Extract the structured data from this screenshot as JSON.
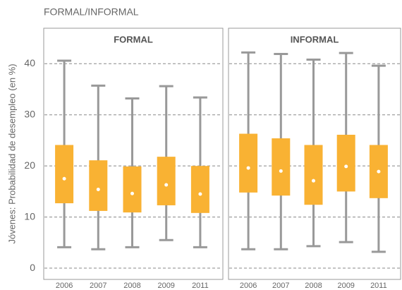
{
  "title": "FORMAL/INFORMAL",
  "chart_data": [
    {
      "type": "box",
      "title": "FORMAL",
      "ylabel": "Jóvenes: Probabilidad de desempleo (en %)",
      "categories": [
        "2006",
        "2007",
        "2008",
        "2009",
        "2011"
      ],
      "low": [
        4.1,
        3.7,
        4.1,
        5.5,
        4.1
      ],
      "q1": [
        12.7,
        11.2,
        10.9,
        12.3,
        10.8
      ],
      "median": [
        17.5,
        15.4,
        14.6,
        16.3,
        14.5
      ],
      "q3": [
        24.1,
        21.1,
        19.9,
        21.8,
        20.0
      ],
      "high": [
        40.6,
        35.7,
        33.2,
        35.6,
        33.4
      ],
      "color": "#f9b233",
      "whisker_color": "#999999",
      "ylim": [
        -2.2,
        42.8
      ],
      "yticks": [
        0,
        10,
        20,
        30,
        40
      ],
      "ytick_labels": true,
      "grid": true
    },
    {
      "type": "box",
      "title": "INFORMAL",
      "categories": [
        "2006",
        "2007",
        "2008",
        "2009",
        "2011"
      ],
      "low": [
        3.7,
        3.7,
        4.3,
        5.1,
        3.2
      ],
      "q1": [
        14.8,
        14.2,
        12.4,
        15.0,
        13.7
      ],
      "median": [
        19.6,
        19.0,
        17.1,
        19.9,
        18.9
      ],
      "q3": [
        26.3,
        25.4,
        24.1,
        26.1,
        24.1
      ],
      "high": [
        42.2,
        41.9,
        40.8,
        42.1,
        39.6
      ],
      "color": "#f9b233",
      "whisker_color": "#999999",
      "ylim": [
        -2.2,
        42.8
      ],
      "yticks": [
        0,
        10,
        20,
        30,
        40
      ],
      "ytick_labels": false,
      "grid": true
    }
  ]
}
